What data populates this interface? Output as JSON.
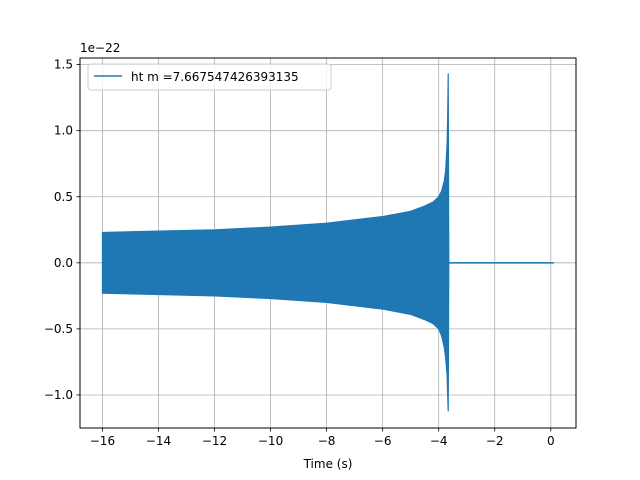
{
  "chart_data": {
    "type": "line",
    "xlabel": "Time (s)",
    "ylabel": "",
    "y_offset_text": "1e−22",
    "xlim": [
      -16.8,
      0.9
    ],
    "ylim": [
      -1.25,
      1.55
    ],
    "x_ticks": [
      -16,
      -14,
      -12,
      -10,
      -8,
      -6,
      -4,
      -2,
      0
    ],
    "x_tick_labels": [
      "−16",
      "−14",
      "−12",
      "−10",
      "−8",
      "−6",
      "−4",
      "−2",
      "0"
    ],
    "y_ticks": [
      -1.0,
      -0.5,
      0.0,
      0.5,
      1.0,
      1.5
    ],
    "y_tick_labels": [
      "−1.0",
      "−0.5",
      "0.0",
      "0.5",
      "1.0",
      "1.5"
    ],
    "grid": true,
    "legend_position": "top-left",
    "series": [
      {
        "name": "ht m =7.667547426393135",
        "color": "#1f77b4",
        "envelope_x": [
          -16.0,
          -14.0,
          -12.0,
          -10.0,
          -8.0,
          -6.0,
          -5.0,
          -4.5,
          -4.2,
          -4.0,
          -3.9,
          -3.8,
          -3.75,
          -3.7,
          -3.68,
          -3.66,
          -3.64,
          0.1
        ],
        "envelope_upper": [
          0.23,
          0.24,
          0.25,
          0.27,
          0.3,
          0.35,
          0.39,
          0.43,
          0.46,
          0.5,
          0.54,
          0.62,
          0.7,
          0.9,
          1.1,
          1.43,
          0.0,
          0.0
        ],
        "envelope_lower": [
          -0.23,
          -0.24,
          -0.25,
          -0.27,
          -0.3,
          -0.35,
          -0.39,
          -0.43,
          -0.46,
          -0.5,
          -0.55,
          -0.64,
          -0.72,
          -0.85,
          -1.0,
          -1.12,
          0.0,
          0.0
        ]
      }
    ]
  }
}
